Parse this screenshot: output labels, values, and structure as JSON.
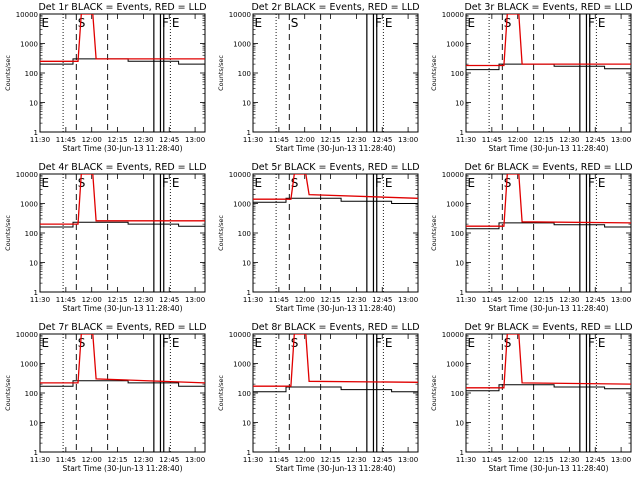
{
  "figure": {
    "x_ticks": [
      "11:30",
      "11:45",
      "12:00",
      "12:15",
      "12:30",
      "12:45",
      "13:00"
    ],
    "y_ticks": [
      "1",
      "10",
      "100",
      "1000",
      "10000"
    ],
    "x_range": [
      0,
      100
    ],
    "y_range_log10": [
      0,
      4
    ],
    "line_colors": {
      "events": "#000000",
      "lld": "#e00000"
    }
  },
  "chart_data": [
    {
      "type": "line",
      "title": "Det 1r BLACK = Events, RED = LLD",
      "xlabel": "Start Time (30-Jun-13 11:28:40)",
      "ylabel": "Counts/sec",
      "series": [
        {
          "color": "#000000",
          "x": [
            0,
            20,
            20.01,
            35.6,
            35.6,
            53.4,
            53.4,
            84,
            84,
            100
          ],
          "y": [
            200,
            200,
            300,
            300,
            300,
            300,
            250,
            250,
            200,
            200
          ]
        },
        {
          "color": "#e00000",
          "x": [
            0,
            23,
            25,
            32,
            34,
            100
          ],
          "y": [
            250,
            250,
            10000,
            10000,
            300,
            300
          ]
        }
      ],
      "markers": [
        {
          "label": "E",
          "x": 0,
          "style": "dotted"
        },
        {
          "label": "S",
          "x": 22,
          "style": "dashed"
        },
        {
          "label": "",
          "x": 14,
          "style": "dotted"
        },
        {
          "label": "",
          "x": 41,
          "style": "dashed"
        },
        {
          "label": "",
          "x": 69,
          "style": "solid"
        },
        {
          "label": "F",
          "x": 73,
          "style": "solid"
        },
        {
          "label": "",
          "x": 75,
          "style": "solid"
        },
        {
          "label": "E",
          "x": 79,
          "style": "dotted"
        }
      ]
    },
    {
      "type": "line",
      "title": "Det 2r BLACK = Events, RED = LLD",
      "xlabel": "Start Time (30-Jun-13 11:28:40)",
      "ylabel": "Counts/sec",
      "series": [],
      "markers": [
        {
          "label": "E",
          "x": 0,
          "style": "dotted"
        },
        {
          "label": "S",
          "x": 22,
          "style": "dashed"
        },
        {
          "label": "",
          "x": 14,
          "style": "dotted"
        },
        {
          "label": "",
          "x": 41,
          "style": "dashed"
        },
        {
          "label": "",
          "x": 69,
          "style": "solid"
        },
        {
          "label": "F",
          "x": 73,
          "style": "solid"
        },
        {
          "label": "",
          "x": 75,
          "style": "solid"
        },
        {
          "label": "E",
          "x": 79,
          "style": "dotted"
        }
      ]
    },
    {
      "type": "line",
      "title": "Det 3r BLACK = Events, RED = LLD",
      "xlabel": "Start Time (30-Jun-13 11:28:40)",
      "ylabel": "Counts/sec",
      "series": [
        {
          "color": "#000000",
          "x": [
            0,
            20,
            20.01,
            35.6,
            35.6,
            53.4,
            53.4,
            84,
            84,
            100
          ],
          "y": [
            130,
            130,
            200,
            200,
            200,
            200,
            170,
            170,
            140,
            140
          ]
        },
        {
          "color": "#e00000",
          "x": [
            0,
            23,
            25,
            32,
            34,
            100
          ],
          "y": [
            180,
            180,
            10000,
            10000,
            200,
            200
          ]
        }
      ],
      "markers": [
        {
          "label": "E",
          "x": 0,
          "style": "dotted"
        },
        {
          "label": "S",
          "x": 22,
          "style": "dashed"
        },
        {
          "label": "",
          "x": 14,
          "style": "dotted"
        },
        {
          "label": "",
          "x": 41,
          "style": "dashed"
        },
        {
          "label": "",
          "x": 69,
          "style": "solid"
        },
        {
          "label": "F",
          "x": 73,
          "style": "solid"
        },
        {
          "label": "",
          "x": 75,
          "style": "solid"
        },
        {
          "label": "E",
          "x": 79,
          "style": "dotted"
        }
      ]
    },
    {
      "type": "line",
      "title": "Det 4r BLACK = Events, RED = LLD",
      "xlabel": "Start Time (30-Jun-13 11:28:40)",
      "ylabel": "Counts/sec",
      "series": [
        {
          "color": "#000000",
          "x": [
            0,
            20,
            20.01,
            35.6,
            35.6,
            53.4,
            53.4,
            84,
            84,
            100
          ],
          "y": [
            160,
            160,
            230,
            230,
            230,
            230,
            200,
            200,
            170,
            170
          ]
        },
        {
          "color": "#e00000",
          "x": [
            0,
            23,
            25,
            32,
            34,
            100
          ],
          "y": [
            200,
            200,
            10000,
            10000,
            260,
            260
          ]
        }
      ],
      "markers": [
        {
          "label": "E",
          "x": 0,
          "style": "dotted"
        },
        {
          "label": "S",
          "x": 22,
          "style": "dashed"
        },
        {
          "label": "",
          "x": 14,
          "style": "dotted"
        },
        {
          "label": "",
          "x": 41,
          "style": "dashed"
        },
        {
          "label": "",
          "x": 69,
          "style": "solid"
        },
        {
          "label": "F",
          "x": 73,
          "style": "solid"
        },
        {
          "label": "",
          "x": 75,
          "style": "solid"
        },
        {
          "label": "E",
          "x": 79,
          "style": "dotted"
        }
      ]
    },
    {
      "type": "line",
      "title": "Det 5r BLACK = Events, RED = LLD",
      "xlabel": "Start Time (30-Jun-13 11:28:40)",
      "ylabel": "Counts/sec",
      "series": [
        {
          "color": "#000000",
          "x": [
            0,
            20,
            20.01,
            35.6,
            35.6,
            53.4,
            53.4,
            84,
            84,
            100
          ],
          "y": [
            1100,
            1100,
            1500,
            1500,
            1500,
            1500,
            1200,
            1200,
            1000,
            1000
          ]
        },
        {
          "color": "#e00000",
          "x": [
            0,
            23,
            25,
            32,
            34,
            100
          ],
          "y": [
            1400,
            1400,
            10000,
            10000,
            2000,
            1500
          ]
        }
      ],
      "markers": [
        {
          "label": "E",
          "x": 0,
          "style": "dotted"
        },
        {
          "label": "S",
          "x": 22,
          "style": "dashed"
        },
        {
          "label": "",
          "x": 14,
          "style": "dotted"
        },
        {
          "label": "",
          "x": 41,
          "style": "dashed"
        },
        {
          "label": "",
          "x": 69,
          "style": "solid"
        },
        {
          "label": "F",
          "x": 73,
          "style": "solid"
        },
        {
          "label": "",
          "x": 75,
          "style": "solid"
        },
        {
          "label": "E",
          "x": 79,
          "style": "dotted"
        }
      ]
    },
    {
      "type": "line",
      "title": "Det 6r BLACK = Events, RED = LLD",
      "xlabel": "Start Time (30-Jun-13 11:28:40)",
      "ylabel": "Counts/sec",
      "series": [
        {
          "color": "#000000",
          "x": [
            0,
            20,
            20.01,
            35.6,
            35.6,
            53.4,
            53.4,
            84,
            84,
            100
          ],
          "y": [
            140,
            140,
            220,
            220,
            220,
            220,
            190,
            190,
            160,
            160
          ]
        },
        {
          "color": "#e00000",
          "x": [
            0,
            23,
            25,
            32,
            34,
            100
          ],
          "y": [
            170,
            170,
            10000,
            10000,
            240,
            220
          ]
        }
      ],
      "markers": [
        {
          "label": "E",
          "x": 0,
          "style": "dotted"
        },
        {
          "label": "S",
          "x": 22,
          "style": "dashed"
        },
        {
          "label": "",
          "x": 14,
          "style": "dotted"
        },
        {
          "label": "",
          "x": 41,
          "style": "dashed"
        },
        {
          "label": "",
          "x": 69,
          "style": "solid"
        },
        {
          "label": "F",
          "x": 73,
          "style": "solid"
        },
        {
          "label": "",
          "x": 75,
          "style": "solid"
        },
        {
          "label": "E",
          "x": 79,
          "style": "dotted"
        }
      ]
    },
    {
      "type": "line",
      "title": "Det 7r BLACK = Events, RED = LLD",
      "xlabel": "Start Time (30-Jun-13 11:28:40)",
      "ylabel": "Counts/sec",
      "series": [
        {
          "color": "#000000",
          "x": [
            0,
            20,
            20.01,
            35.6,
            35.6,
            53.4,
            53.4,
            84,
            84,
            100
          ],
          "y": [
            170,
            170,
            260,
            260,
            260,
            260,
            220,
            220,
            170,
            170
          ]
        },
        {
          "color": "#e00000",
          "x": [
            0,
            23,
            25,
            32,
            34,
            100
          ],
          "y": [
            220,
            220,
            10000,
            10000,
            300,
            220
          ]
        }
      ],
      "markers": [
        {
          "label": "E",
          "x": 0,
          "style": "dotted"
        },
        {
          "label": "S",
          "x": 22,
          "style": "dashed"
        },
        {
          "label": "",
          "x": 14,
          "style": "dotted"
        },
        {
          "label": "",
          "x": 41,
          "style": "dashed"
        },
        {
          "label": "",
          "x": 69,
          "style": "solid"
        },
        {
          "label": "F",
          "x": 73,
          "style": "solid"
        },
        {
          "label": "",
          "x": 75,
          "style": "solid"
        },
        {
          "label": "E",
          "x": 79,
          "style": "dotted"
        }
      ]
    },
    {
      "type": "line",
      "title": "Det 8r BLACK = Events, RED = LLD",
      "xlabel": "Start Time (30-Jun-13 11:28:40)",
      "ylabel": "Counts/sec",
      "series": [
        {
          "color": "#000000",
          "x": [
            0,
            20,
            20.01,
            35.6,
            35.6,
            53.4,
            53.4,
            84,
            84,
            100
          ],
          "y": [
            110,
            110,
            160,
            160,
            160,
            160,
            130,
            130,
            110,
            110
          ]
        },
        {
          "color": "#e00000",
          "x": [
            0,
            23,
            25,
            32,
            34,
            100
          ],
          "y": [
            170,
            170,
            10000,
            10000,
            250,
            230
          ]
        }
      ],
      "markers": [
        {
          "label": "E",
          "x": 0,
          "style": "dotted"
        },
        {
          "label": "S",
          "x": 22,
          "style": "dashed"
        },
        {
          "label": "",
          "x": 14,
          "style": "dotted"
        },
        {
          "label": "",
          "x": 41,
          "style": "dashed"
        },
        {
          "label": "",
          "x": 69,
          "style": "solid"
        },
        {
          "label": "F",
          "x": 73,
          "style": "solid"
        },
        {
          "label": "",
          "x": 75,
          "style": "solid"
        },
        {
          "label": "E",
          "x": 79,
          "style": "dotted"
        }
      ]
    },
    {
      "type": "line",
      "title": "Det 9r BLACK = Events, RED = LLD",
      "xlabel": "Start Time (30-Jun-13 11:28:40)",
      "ylabel": "Counts/sec",
      "series": [
        {
          "color": "#000000",
          "x": [
            0,
            20,
            20.01,
            35.6,
            35.6,
            53.4,
            53.4,
            84,
            84,
            100
          ],
          "y": [
            120,
            120,
            190,
            190,
            190,
            190,
            160,
            160,
            140,
            140
          ]
        },
        {
          "color": "#e00000",
          "x": [
            0,
            23,
            25,
            32,
            34,
            100
          ],
          "y": [
            150,
            150,
            10000,
            10000,
            220,
            200
          ]
        }
      ],
      "markers": [
        {
          "label": "E",
          "x": 0,
          "style": "dotted"
        },
        {
          "label": "S",
          "x": 22,
          "style": "dashed"
        },
        {
          "label": "",
          "x": 14,
          "style": "dotted"
        },
        {
          "label": "",
          "x": 41,
          "style": "dashed"
        },
        {
          "label": "",
          "x": 69,
          "style": "solid"
        },
        {
          "label": "F",
          "x": 73,
          "style": "solid"
        },
        {
          "label": "",
          "x": 75,
          "style": "solid"
        },
        {
          "label": "E",
          "x": 79,
          "style": "dotted"
        }
      ]
    }
  ]
}
